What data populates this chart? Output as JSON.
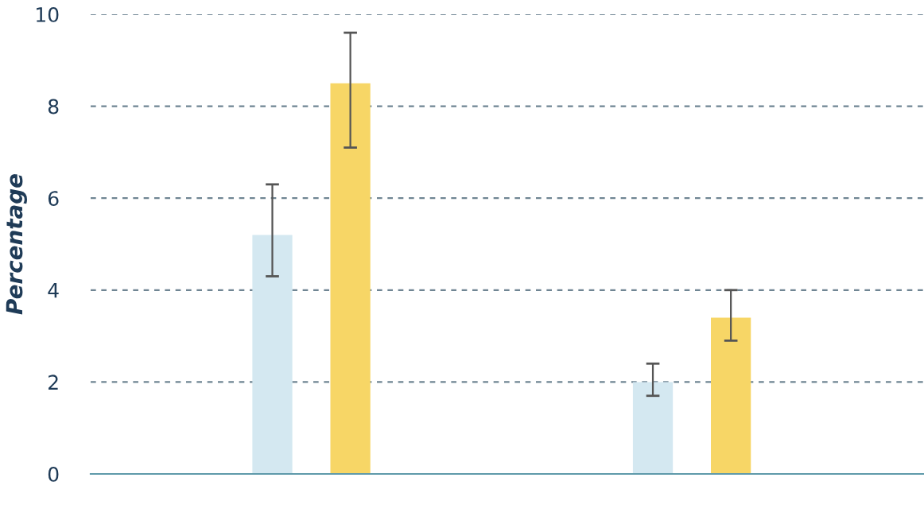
{
  "chart_data": {
    "type": "bar",
    "ylabel": "Percentage",
    "categories": [
      null,
      null
    ],
    "series": [
      {
        "color": "#d4e8f1",
        "values": [
          5.2,
          2.0
        ],
        "errors": [
          [
            4.3,
            6.3
          ],
          [
            1.7,
            2.4
          ]
        ]
      },
      {
        "color": "#f7d666",
        "values": [
          8.5,
          3.4
        ],
        "errors": [
          [
            7.1,
            9.6
          ],
          [
            2.9,
            4.0
          ]
        ]
      }
    ],
    "ylim": [
      0,
      10
    ],
    "yticks": [
      0,
      2,
      4,
      6,
      8,
      10
    ],
    "grid": "y",
    "legend": false
  }
}
